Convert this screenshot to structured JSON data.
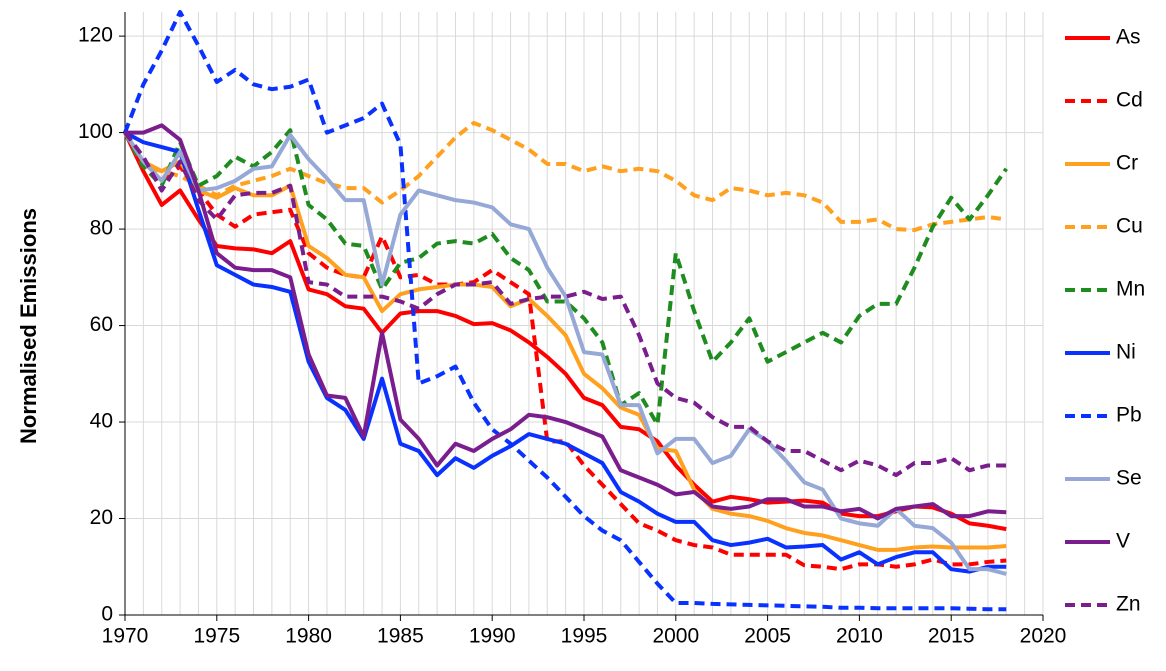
{
  "chart_data": {
    "type": "line",
    "y_label": "Normalised Emissions",
    "x": [
      1970,
      1971,
      1972,
      1973,
      1974,
      1975,
      1976,
      1977,
      1978,
      1979,
      1980,
      1981,
      1982,
      1983,
      1984,
      1985,
      1986,
      1987,
      1988,
      1989,
      1990,
      1991,
      1992,
      1993,
      1994,
      1995,
      1996,
      1997,
      1998,
      1999,
      2000,
      2001,
      2002,
      2003,
      2004,
      2005,
      2006,
      2007,
      2008,
      2009,
      2010,
      2011,
      2012,
      2013,
      2014,
      2015,
      2016,
      2017,
      2018
    ],
    "xlim": [
      1970,
      2020
    ],
    "xticks": [
      1970,
      1975,
      1980,
      1985,
      1990,
      1995,
      2000,
      2005,
      2010,
      2015,
      2020
    ],
    "ylim": [
      0,
      125
    ],
    "yticks": [
      0,
      20,
      40,
      60,
      80,
      100,
      120
    ],
    "grid": true,
    "xgrid_minor_step": 1,
    "legend": "right",
    "series": [
      {
        "name": "As",
        "color": "#ff0000",
        "dashed": false,
        "values": [
          100,
          92,
          85,
          88,
          82,
          76.5,
          76,
          75.8,
          75,
          77.5,
          67.5,
          66.5,
          64,
          63.5,
          58.5,
          62.5,
          63,
          63,
          62,
          60.3,
          60.5,
          59,
          56.5,
          53.5,
          50,
          45,
          43.5,
          39,
          38.5,
          36,
          31,
          27,
          23.5,
          24.5,
          24,
          23.3,
          23.5,
          23.7,
          23.3,
          21,
          20.5,
          20.5,
          21.5,
          22.5,
          22.3,
          21,
          19,
          18.5,
          17.8
        ]
      },
      {
        "name": "Cd",
        "color": "#ff0000",
        "dashed": true,
        "values": [
          100,
          94,
          90,
          93,
          88,
          83,
          80.5,
          83,
          83.5,
          84,
          75,
          72,
          70.5,
          70,
          78.5,
          70,
          70.5,
          68.5,
          68.5,
          69,
          71.5,
          69,
          66.5,
          36,
          36,
          31,
          27,
          23,
          19,
          17.5,
          15.5,
          14.5,
          14,
          12.5,
          12.5,
          12.5,
          12.5,
          10.3,
          10,
          9.5,
          10.5,
          10.5,
          10,
          10.5,
          11.5,
          10.5,
          10.5,
          11,
          11.3
        ]
      },
      {
        "name": "Cr",
        "color": "#ffa01e",
        "dashed": false,
        "values": [
          100,
          94,
          92,
          94,
          88,
          86.5,
          88.5,
          87,
          87,
          89,
          76.5,
          74,
          70.5,
          70,
          63,
          66.5,
          67.5,
          68,
          68.5,
          68.5,
          68,
          64,
          65.5,
          62,
          58,
          50,
          47,
          43,
          41.5,
          34.5,
          34,
          26,
          22,
          21,
          20.5,
          19.5,
          18,
          17,
          16.5,
          15.5,
          14.5,
          13.5,
          13.5,
          14,
          14.2,
          14,
          14,
          14,
          14.3
        ]
      },
      {
        "name": "Cu",
        "color": "#ffa01e",
        "dashed": true,
        "values": [
          100,
          93,
          92,
          91,
          89,
          87,
          89,
          90,
          91,
          92.5,
          91,
          89.5,
          88.5,
          88.5,
          85.5,
          88,
          91,
          95,
          99,
          102,
          100.5,
          98.5,
          96.5,
          93.5,
          93.5,
          92,
          93,
          92,
          92.5,
          92,
          90,
          87,
          86,
          88.5,
          88,
          87,
          87.5,
          87,
          85.5,
          81.5,
          81.5,
          82,
          80,
          79.8,
          81,
          81.5,
          82,
          82.5,
          82
        ]
      },
      {
        "name": "Mn",
        "color": "#1e8c1e",
        "dashed": true,
        "values": [
          100,
          93,
          89,
          98,
          89,
          91,
          95,
          93,
          96,
          100.5,
          85,
          82,
          77,
          76.5,
          67.5,
          73,
          74,
          77,
          77.5,
          77,
          79,
          74,
          71.5,
          65,
          65,
          61.5,
          56.5,
          43.5,
          46,
          39.5,
          75,
          63,
          52.5,
          56.5,
          61.5,
          52.5,
          54.5,
          56.5,
          58.5,
          56.5,
          62,
          64.5,
          64.5,
          72,
          80.5,
          86.5,
          82,
          87,
          92.5
        ]
      },
      {
        "name": "Ni",
        "color": "#0a32ff",
        "dashed": false,
        "values": [
          100,
          98,
          97,
          96,
          84,
          72.5,
          70.5,
          68.5,
          68,
          67,
          52.5,
          45,
          42.5,
          36.5,
          49,
          35.5,
          34,
          29,
          32.5,
          30.5,
          33,
          35,
          37.5,
          36.5,
          35.5,
          33.5,
          31.5,
          25.5,
          23.5,
          21,
          19.3,
          19.3,
          15.5,
          14.5,
          15,
          15.8,
          14,
          14.2,
          14.5,
          11.5,
          13,
          10.5,
          12,
          13,
          13,
          9.5,
          9,
          10,
          10
        ]
      },
      {
        "name": "Pb",
        "color": "#0a32ff",
        "dashed": true,
        "values": [
          100,
          110,
          117,
          125,
          118,
          110.5,
          113,
          110,
          109,
          109.5,
          111,
          100,
          101.5,
          103,
          106,
          97.5,
          48,
          49.5,
          51.5,
          44,
          38.5,
          35.5,
          32,
          28.5,
          24.5,
          20.5,
          17.5,
          15.5,
          11,
          6.5,
          2.5,
          2.5,
          2.3,
          2.2,
          2.1,
          2,
          1.9,
          1.8,
          1.7,
          1.5,
          1.5,
          1.4,
          1.4,
          1.4,
          1.4,
          1.4,
          1.3,
          1.2,
          1.2
        ]
      },
      {
        "name": "Se",
        "color": "#95a8d6",
        "dashed": false,
        "values": [
          100,
          94,
          90,
          96,
          88,
          88.5,
          90,
          92.5,
          93,
          99.5,
          94.5,
          90.5,
          86,
          86,
          68.5,
          83,
          88,
          87,
          86,
          85.5,
          84.5,
          81,
          80,
          72,
          66,
          54.5,
          54,
          43.5,
          43.5,
          33.5,
          36.5,
          36.5,
          31.5,
          33,
          38.5,
          36,
          32,
          27.5,
          26,
          20,
          19,
          18.5,
          22,
          18.5,
          18,
          15,
          9.5,
          9.5,
          8.5
        ]
      },
      {
        "name": "V",
        "color": "#7a1e8e",
        "dashed": false,
        "values": [
          100,
          100,
          101.5,
          98.5,
          88,
          75,
          72,
          71.5,
          71.5,
          70,
          54,
          45.5,
          45,
          37,
          58.5,
          40.5,
          36.5,
          31,
          35.5,
          34,
          36.5,
          38.5,
          41.5,
          41,
          40,
          38.5,
          37,
          30,
          28.5,
          27,
          25,
          25.5,
          22.5,
          22,
          22.5,
          24,
          24,
          22.5,
          22.5,
          21.5,
          22,
          20,
          22,
          22.5,
          23,
          20.5,
          20.5,
          21.5,
          21.3
        ]
      },
      {
        "name": "Zn",
        "color": "#7a1e8e",
        "dashed": true,
        "values": [
          100,
          95,
          88,
          94,
          86,
          82,
          87,
          87.5,
          87.5,
          89,
          69,
          68.5,
          66,
          66,
          66,
          65,
          63.5,
          66.5,
          68.5,
          68.5,
          69,
          64.5,
          65.5,
          66,
          66,
          67,
          65.5,
          66,
          58,
          48,
          45,
          44,
          41,
          39,
          39,
          36,
          34,
          34,
          32,
          30,
          32,
          31,
          29,
          31.5,
          31.5,
          32.5,
          30,
          31,
          31
        ]
      }
    ]
  }
}
